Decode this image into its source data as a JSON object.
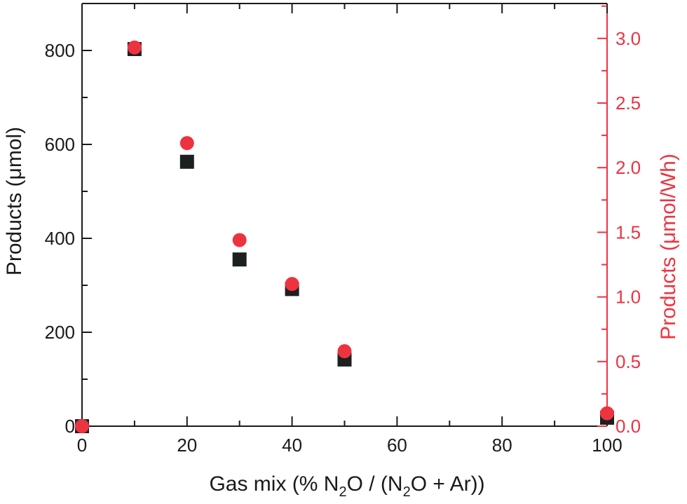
{
  "chart_data": {
    "type": "scatter",
    "xlabel": "Gas mix (% N2O / (N2O + Ar))",
    "xlabel_parts": {
      "pre": "Gas mix (% N",
      "sub1": "2",
      "mid": "O / (N",
      "sub2": "2",
      "post": "O + Ar))"
    },
    "ylabel": "Products (μmol)",
    "y2label": "Products (μmol/Wh)",
    "xlim": [
      0,
      100
    ],
    "ylim": [
      0,
      900
    ],
    "y2lim": [
      0,
      3.27
    ],
    "x_ticks": [
      0,
      20,
      40,
      60,
      80,
      100
    ],
    "x_tick_labels": [
      "0",
      "20",
      "40",
      "60",
      "80",
      "100"
    ],
    "y_ticks": [
      0,
      200,
      400,
      600,
      800
    ],
    "y_tick_labels": [
      "0",
      "200",
      "400",
      "600",
      "800"
    ],
    "y2_ticks": [
      0,
      0.5,
      1.0,
      1.5,
      2.0,
      2.5,
      3.0
    ],
    "y2_tick_labels": [
      "0.0",
      "0.5",
      "1.0",
      "1.5",
      "2.0",
      "2.5",
      "3.0"
    ],
    "series": [
      {
        "axis": "left",
        "marker": "square",
        "color": "#1c2120",
        "x": [
          0,
          10,
          20,
          30,
          40,
          50,
          100
        ],
        "y": [
          0,
          803,
          563,
          355,
          292,
          142,
          18
        ]
      },
      {
        "axis": "right",
        "marker": "circle",
        "color": "#ee3340",
        "x": [
          0,
          10,
          20,
          30,
          40,
          50,
          100
        ],
        "y": [
          0.0,
          2.93,
          2.19,
          1.44,
          1.1,
          0.58,
          0.1
        ]
      }
    ],
    "colors": {
      "left_axis": "#1a1a1a",
      "right_axis": "#ee3340"
    },
    "grid": false,
    "legend": "none"
  }
}
